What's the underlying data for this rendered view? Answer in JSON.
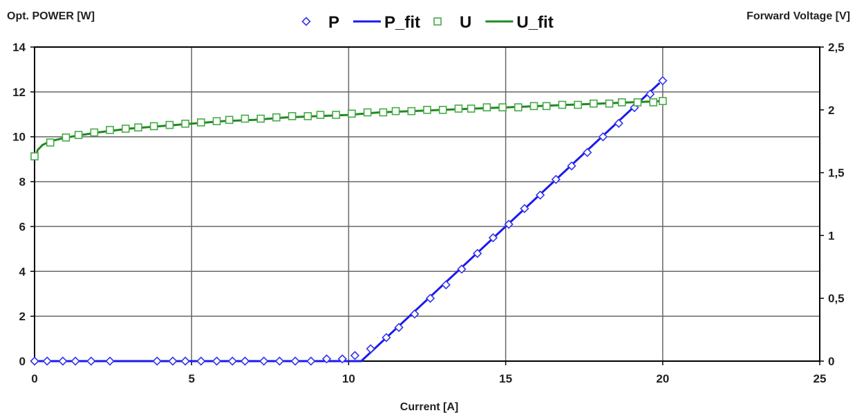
{
  "chart_data": {
    "type": "scatter",
    "title": "",
    "xlabel": "Current [A]",
    "ylabel_left": "Opt. POWER [W]",
    "ylabel_right": "Forward Voltage [V]",
    "xlim": [
      0,
      25
    ],
    "ylim_left": [
      0,
      14
    ],
    "ylim_right": [
      0,
      2.5
    ],
    "x_ticks": [
      "0",
      "5",
      "10",
      "15",
      "20",
      "25"
    ],
    "y_left_ticks": [
      "0",
      "2",
      "4",
      "6",
      "8",
      "10",
      "12",
      "14"
    ],
    "y_right_ticks": [
      "0",
      "0,5",
      "1",
      "1,5",
      "2",
      "2,5"
    ],
    "grid": true,
    "legend_position": "top-center",
    "series": [
      {
        "name": "P",
        "kind": "markers",
        "marker": "diamond",
        "axis": "left",
        "color": "#3333ee",
        "x": [
          0,
          0.4,
          0.9,
          1.3,
          1.8,
          2.4,
          3.9,
          4.4,
          4.8,
          5.3,
          5.8,
          6.3,
          6.7,
          7.3,
          7.8,
          8.3,
          8.8,
          9.3,
          9.8,
          10.2,
          10.7,
          11.2,
          11.6,
          12.1,
          12.6,
          13.1,
          13.6,
          14.1,
          14.6,
          15.1,
          15.6,
          16.1,
          16.6,
          17.1,
          17.6,
          18.1,
          18.6,
          19.1,
          19.6,
          20.0
        ],
        "y": [
          0,
          0,
          0,
          0,
          0,
          0,
          0,
          0,
          0,
          0,
          0,
          0,
          0,
          0,
          0,
          0,
          0,
          0.1,
          0.1,
          0.25,
          0.55,
          1.05,
          1.5,
          2.1,
          2.8,
          3.4,
          4.1,
          4.8,
          5.5,
          6.1,
          6.8,
          7.4,
          8.1,
          8.7,
          9.3,
          10.0,
          10.6,
          11.3,
          11.9,
          12.5
        ]
      },
      {
        "name": "P_fit",
        "kind": "line",
        "axis": "left",
        "color": "#1a1aee",
        "x": [
          0,
          10.4,
          19.9
        ],
        "y": [
          0,
          0,
          12.4
        ]
      },
      {
        "name": "U",
        "kind": "markers",
        "marker": "square",
        "axis": "right",
        "color": "#44aa44",
        "x": [
          0,
          0.5,
          1.0,
          1.4,
          1.9,
          2.4,
          2.9,
          3.3,
          3.8,
          4.3,
          4.8,
          5.3,
          5.8,
          6.2,
          6.7,
          7.2,
          7.7,
          8.2,
          8.7,
          9.1,
          9.6,
          10.1,
          10.6,
          11.1,
          11.5,
          12.0,
          12.5,
          13.0,
          13.5,
          13.9,
          14.4,
          14.9,
          15.4,
          15.9,
          16.3,
          16.8,
          17.3,
          17.8,
          18.3,
          18.7,
          19.2,
          19.7,
          20.0
        ],
        "y": [
          1.63,
          1.74,
          1.78,
          1.8,
          1.82,
          1.84,
          1.85,
          1.86,
          1.87,
          1.88,
          1.89,
          1.9,
          1.91,
          1.92,
          1.93,
          1.93,
          1.94,
          1.95,
          1.95,
          1.96,
          1.96,
          1.97,
          1.98,
          1.98,
          1.99,
          1.99,
          2.0,
          2.0,
          2.01,
          2.01,
          2.02,
          2.02,
          2.02,
          2.03,
          2.03,
          2.04,
          2.04,
          2.05,
          2.05,
          2.06,
          2.06,
          2.06,
          2.07
        ]
      },
      {
        "name": "U_fit",
        "kind": "line",
        "axis": "right",
        "color": "#228822",
        "x": [
          0,
          0.1,
          0.25,
          0.5,
          1.0,
          2.0,
          3.0,
          4.0,
          5.0,
          6.0,
          7.0,
          8.0,
          9.0,
          10.0,
          11.0,
          12.0,
          13.0,
          14.0,
          15.0,
          16.0,
          17.0,
          18.0,
          19.0,
          20.0
        ],
        "y": [
          1.6,
          1.68,
          1.72,
          1.75,
          1.78,
          1.82,
          1.85,
          1.87,
          1.89,
          1.91,
          1.92,
          1.94,
          1.95,
          1.96,
          1.98,
          1.99,
          2.0,
          2.01,
          2.02,
          2.03,
          2.04,
          2.05,
          2.06,
          2.07
        ]
      }
    ]
  }
}
